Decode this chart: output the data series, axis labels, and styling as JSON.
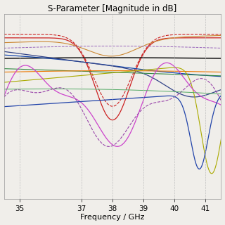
{
  "title": "S-Parameter [Magnitude in dB]",
  "xlabel": "Frequency / GHz",
  "xlim": [
    34.5,
    41.5
  ],
  "ylim": [
    -26,
    1
  ],
  "xticks": [
    35,
    37,
    38,
    39,
    40,
    41
  ],
  "freq_start": 34.5,
  "freq_end": 41.5,
  "n_pts": 500,
  "background_color": "#f0eeea",
  "grid_color": "#bbbbbb",
  "title_fontsize": 8.5,
  "label_fontsize": 8,
  "tick_fontsize": 7.5
}
